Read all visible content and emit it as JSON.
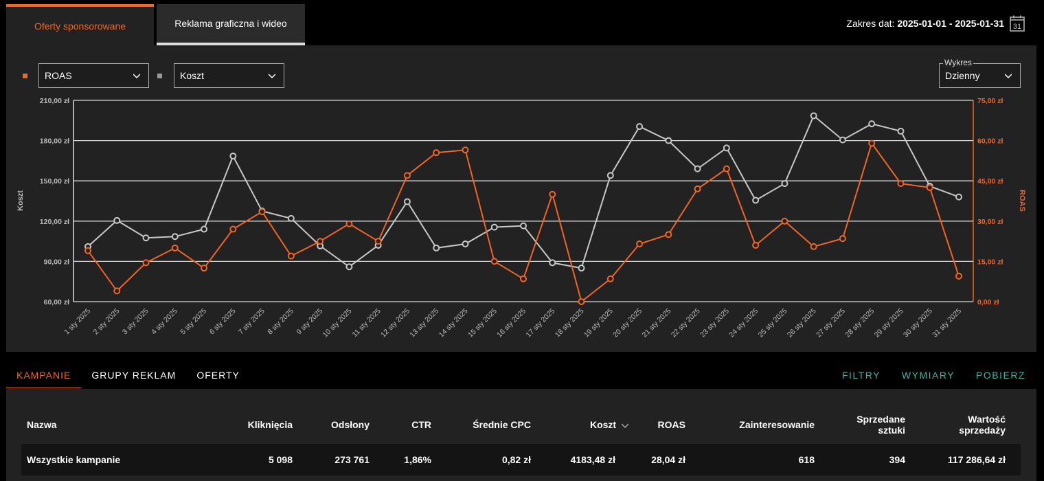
{
  "tabs": [
    {
      "label": "Oferty sponsorowane",
      "active": true
    },
    {
      "label": "Reklama graficzna i wideo",
      "active": false
    }
  ],
  "date_range": {
    "label": "Zakres dat:",
    "value": "2025-01-01 - 2025-01-31",
    "calendar_day": "31"
  },
  "controls": {
    "metric1": {
      "value": "ROAS",
      "color": "#f26522"
    },
    "metric2": {
      "value": "Koszt",
      "color": "#aaaaaa"
    },
    "chart_mode": {
      "legend": "Wykres",
      "value": "Dzienny"
    }
  },
  "chart_data": {
    "type": "line",
    "categories": [
      "1 sty 2025",
      "2 sty 2025",
      "3 sty 2025",
      "4 sty 2025",
      "5 sty 2025",
      "6 sty 2025",
      "7 sty 2025",
      "8 sty 2025",
      "9 sty 2025",
      "10 sty 2025",
      "11 sty 2025",
      "12 sty 2025",
      "13 sty 2025",
      "14 sty 2025",
      "15 sty 2025",
      "16 sty 2025",
      "17 sty 2025",
      "18 sty 2025",
      "19 sty 2025",
      "20 sty 2025",
      "21 sty 2025",
      "22 sty 2025",
      "23 sty 2025",
      "24 sty 2025",
      "25 sty 2025",
      "26 sty 2025",
      "27 sty 2025",
      "28 sty 2025",
      "29 sty 2025",
      "30 sty 2025",
      "31 sty 2025"
    ],
    "series": [
      {
        "name": "Koszt",
        "axis": "left",
        "color": "#c8c8c8",
        "values": [
          101,
          120.5,
          107.5,
          108.5,
          114,
          168.5,
          127.5,
          122,
          101.5,
          86,
          102,
          134.5,
          100,
          103,
          115.5,
          116.5,
          89,
          85,
          154,
          190.5,
          180,
          159,
          174.5,
          135.5,
          148,
          198.5,
          180.5,
          192.5,
          187,
          146,
          138
        ]
      },
      {
        "name": "ROAS",
        "axis": "right",
        "color": "#f26522",
        "values": [
          19,
          4,
          14.5,
          20,
          12.5,
          27,
          33.5,
          17,
          22.5,
          29,
          22.5,
          47,
          55.5,
          56.5,
          15,
          8.5,
          40,
          0,
          8.5,
          21.5,
          25,
          42,
          49.5,
          21,
          30,
          20.5,
          23.5,
          59,
          44,
          42.5,
          9.5
        ]
      }
    ],
    "y_left": {
      "label": "Koszt",
      "ticks": [
        "210,00 zł",
        "180,00 zł",
        "150,00 zł",
        "120,00 zł",
        "90,00 zł",
        "60,00 zł"
      ],
      "min": 60,
      "max": 210
    },
    "y_right": {
      "label": "ROAS",
      "ticks": [
        "75,00 zł",
        "60,00 zł",
        "45,00 zł",
        "30,00 zł",
        "15,00 zł",
        "0,00 zł"
      ],
      "min": 0,
      "max": 75
    },
    "grid": true
  },
  "bottom_tabs": [
    {
      "label": "KAMPANIE",
      "active": true
    },
    {
      "label": "GRUPY REKLAM",
      "active": false
    },
    {
      "label": "OFERTY",
      "active": false
    }
  ],
  "actions": {
    "filters": "FILTRY",
    "dimensions": "WYMIARY",
    "download": "POBIERZ"
  },
  "table": {
    "headers": {
      "name": "Nazwa",
      "clicks": "Kliknięcia",
      "impressions": "Odsłony",
      "ctr": "CTR",
      "cpc": "Średnie CPC",
      "cost": "Koszt",
      "roas": "ROAS",
      "interest": "Zainteresowanie",
      "sold_1": "Sprzedane",
      "sold_2": "sztuki",
      "value_1": "Wartość",
      "value_2": "sprzedaży"
    },
    "row": {
      "name": "Wszystkie kampanie",
      "clicks": "5 098",
      "impressions": "273 761",
      "ctr": "1,86%",
      "cpc": "0,82 zł",
      "cost": "4183,48 zł",
      "roas": "28,04 zł",
      "interest": "618",
      "sold": "394",
      "value": "117 286,64 zł"
    }
  }
}
